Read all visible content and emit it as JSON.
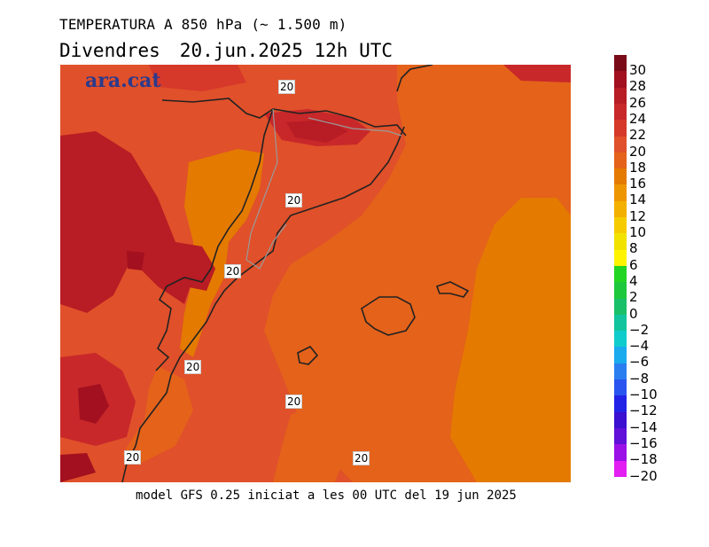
{
  "header": {
    "title": "TEMPERATURA A 850 hPa (~ 1.500 m)",
    "day": "Divendres",
    "date": "20.jun.2025 12h UTC"
  },
  "map": {
    "watermark": "ara.cat",
    "contour_labels": [
      "20",
      "20",
      "20",
      "20",
      "20",
      "20",
      "20"
    ]
  },
  "footer": "model GFS 0.25 iniciat a les 00 UTC del 19 jun 2025",
  "legend": {
    "unit_values": [
      "30",
      "28",
      "26",
      "24",
      "22",
      "20",
      "18",
      "16",
      "14",
      "12",
      "10",
      "8",
      "6",
      "4",
      "2",
      "0",
      "−2",
      "−4",
      "−6",
      "−8",
      "−10",
      "−12",
      "−14",
      "−16",
      "−18",
      "−20"
    ],
    "colors": [
      "#7a0a18",
      "#a3101f",
      "#b81c24",
      "#c8282a",
      "#d6382a",
      "#e0502a",
      "#e4621a",
      "#e47a00",
      "#ee9600",
      "#f3b000",
      "#f6cc00",
      "#f2e200",
      "#fff400",
      "#22d522",
      "#1ec83c",
      "#18c06a",
      "#10c49e",
      "#0ecccc",
      "#1aaaee",
      "#2a7ef0",
      "#2a54f0",
      "#2222e6",
      "#3b10d0",
      "#6010d8",
      "#9a10e6",
      "#e21ef2"
    ]
  }
}
